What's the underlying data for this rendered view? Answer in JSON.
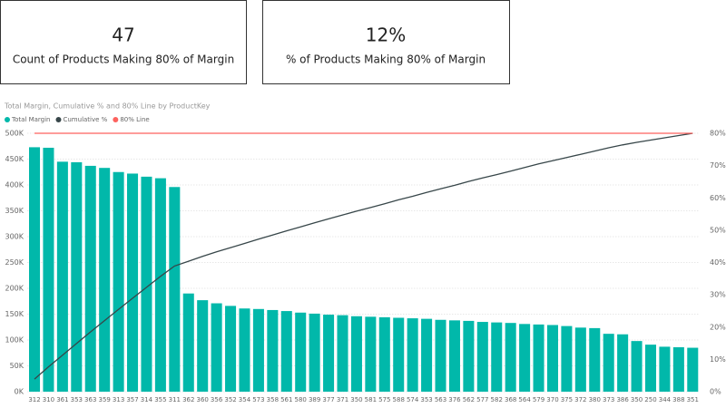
{
  "cards": [
    {
      "value": "47",
      "label": "Count of Products Making 80% of Margin"
    },
    {
      "value": "12%",
      "label": "% of Products Making 80% of Margin"
    }
  ],
  "chart_data": {
    "type": "bar-line",
    "title": "Total Margin, Cumulative % and 80% Line by ProductKey",
    "categories": [
      "312",
      "310",
      "361",
      "353",
      "363",
      "359",
      "313",
      "357",
      "314",
      "355",
      "311",
      "362",
      "360",
      "356",
      "352",
      "354",
      "573",
      "358",
      "561",
      "580",
      "389",
      "377",
      "371",
      "350",
      "581",
      "575",
      "588",
      "574",
      "353",
      "563",
      "376",
      "562",
      "577",
      "582",
      "368",
      "564",
      "579",
      "370",
      "375",
      "372",
      "380",
      "373",
      "386",
      "350",
      "250",
      "344",
      "388",
      "351"
    ],
    "series": [
      {
        "name": "Total Margin",
        "color": "#01b8aa",
        "kind": "bar",
        "axis": "y",
        "values": [
          473,
          472,
          445,
          444,
          437,
          433,
          425,
          422,
          416,
          413,
          396,
          190,
          177,
          171,
          166,
          161,
          160,
          158,
          156,
          153,
          151,
          149,
          148,
          146,
          145,
          144,
          143,
          142,
          141,
          139,
          138,
          137,
          135,
          134,
          133,
          131,
          130,
          129,
          127,
          124,
          123,
          112,
          111,
          98,
          91,
          87,
          86,
          85
        ]
      },
      {
        "name": "Cumulative %",
        "color": "#374649",
        "kind": "line",
        "axis": "y2",
        "values": [
          3.9,
          7.7,
          11.3,
          14.9,
          18.5,
          22.0,
          25.5,
          28.9,
          32.3,
          35.7,
          38.9,
          40.4,
          41.9,
          43.3,
          44.6,
          45.9,
          47.2,
          48.5,
          49.8,
          51.0,
          52.3,
          53.5,
          54.7,
          55.9,
          57.0,
          58.2,
          59.4,
          60.5,
          61.7,
          62.8,
          63.9,
          65.1,
          66.2,
          67.2,
          68.3,
          69.4,
          70.5,
          71.5,
          72.5,
          73.5,
          74.5,
          75.5,
          76.4,
          77.2,
          77.9,
          78.6,
          79.3,
          80.0
        ]
      },
      {
        "name": "80% Line",
        "color": "#fd625e",
        "kind": "line",
        "axis": "y2",
        "values": [
          80,
          80,
          80,
          80,
          80,
          80,
          80,
          80,
          80,
          80,
          80,
          80,
          80,
          80,
          80,
          80,
          80,
          80,
          80,
          80,
          80,
          80,
          80,
          80,
          80,
          80,
          80,
          80,
          80,
          80,
          80,
          80,
          80,
          80,
          80,
          80,
          80,
          80,
          80,
          80,
          80,
          80,
          80,
          80,
          80,
          80,
          80,
          80
        ]
      }
    ],
    "ylim": [
      0,
      500
    ],
    "yticks": [
      {
        "value": 0,
        "label": "0K"
      },
      {
        "value": 50,
        "label": "50K"
      },
      {
        "value": 100,
        "label": "100K"
      },
      {
        "value": 150,
        "label": "150K"
      },
      {
        "value": 200,
        "label": "200K"
      },
      {
        "value": 250,
        "label": "250K"
      },
      {
        "value": 300,
        "label": "300K"
      },
      {
        "value": 350,
        "label": "350K"
      },
      {
        "value": 400,
        "label": "400K"
      },
      {
        "value": 450,
        "label": "450K"
      },
      {
        "value": 500,
        "label": "500K"
      }
    ],
    "y2lim": [
      0,
      80
    ],
    "y2ticks": [
      {
        "value": 0,
        "label": "0%"
      },
      {
        "value": 10,
        "label": "10%"
      },
      {
        "value": 20,
        "label": "20%"
      },
      {
        "value": 30,
        "label": "30%"
      },
      {
        "value": 40,
        "label": "40%"
      },
      {
        "value": 50,
        "label": "50%"
      },
      {
        "value": 60,
        "label": "60%"
      },
      {
        "value": 70,
        "label": "70%"
      },
      {
        "value": 80,
        "label": "80%"
      }
    ],
    "grid": true,
    "legend": "top-left"
  }
}
